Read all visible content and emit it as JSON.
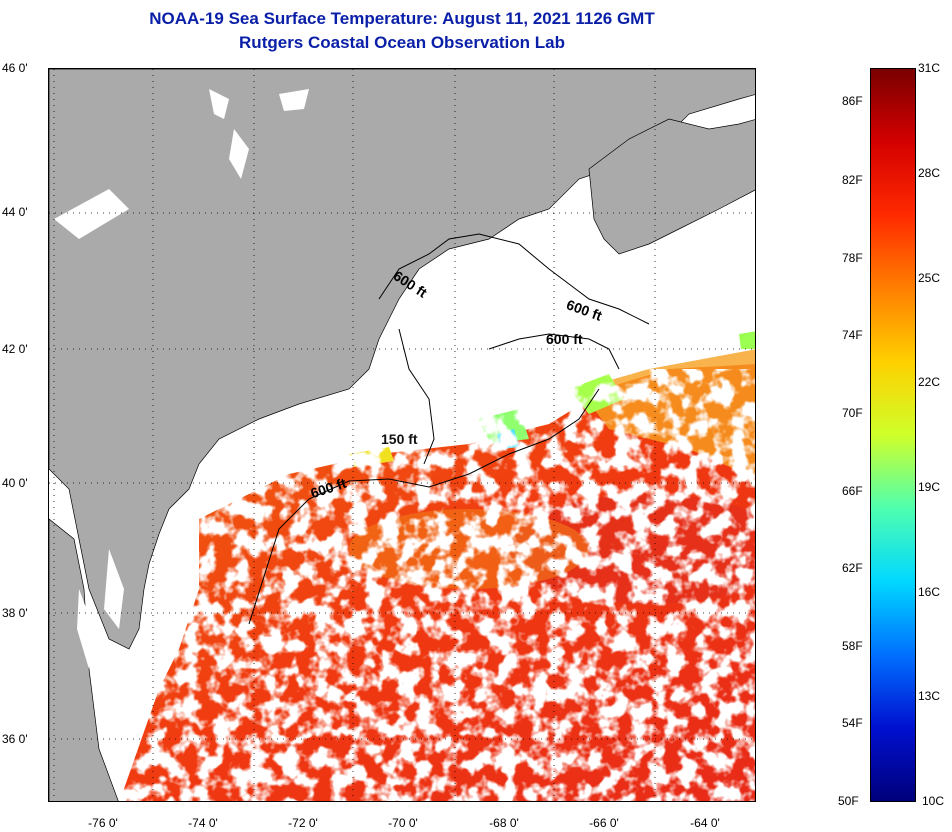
{
  "title": {
    "line1": "NOAA-19 Sea Surface Temperature:  August 11, 2021 1126 GMT",
    "line2": "Rutgers Coastal Ocean Observation Lab"
  },
  "map": {
    "lat_labels": [
      "46 0'",
      "44 0'",
      "42 0'",
      "40 0'",
      "38 0'",
      "36 0'"
    ],
    "lon_labels": [
      "-76 0'",
      "-74 0'",
      "-72 0'",
      "-70 0'",
      "-68 0'",
      "-66 0'",
      "-64 0'"
    ],
    "depth_contours": [
      "600 ft",
      "600 ft",
      "600 ft",
      "150 ft",
      "600 ft"
    ],
    "colors": {
      "land": "#aaaaaa",
      "no_data": "#ffffff",
      "grid": "#000000"
    }
  },
  "colorbar": {
    "fahrenheit_labels": [
      "86F",
      "82F",
      "78F",
      "74F",
      "70F",
      "66F",
      "62F",
      "58F",
      "54F",
      "50F"
    ],
    "celsius_labels": [
      "31C",
      "28C",
      "25C",
      "22C",
      "19C",
      "16C",
      "13C",
      "10C"
    ],
    "gradient": [
      "#7a0000",
      "#d40000",
      "#ff2a00",
      "#ff7f00",
      "#ffd000",
      "#cfff2a",
      "#4fffaf",
      "#00d8ff",
      "#0070ff",
      "#0010d0",
      "#00007a"
    ]
  }
}
